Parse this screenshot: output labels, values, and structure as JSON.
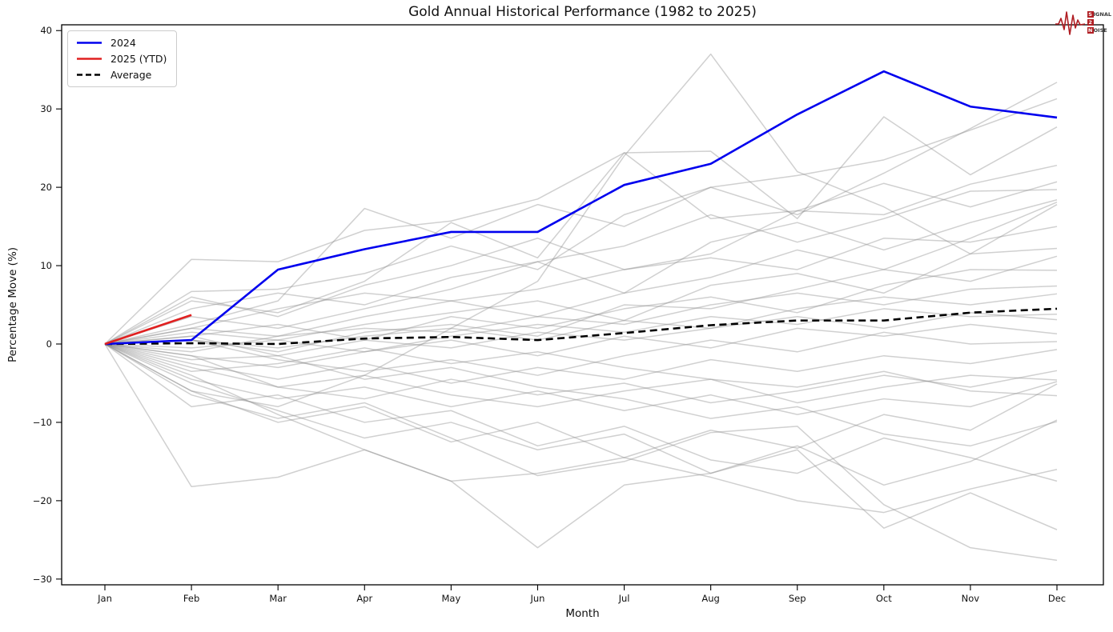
{
  "logo": {
    "rows": [
      {
        "lead": "S",
        "rest": "IGNAL"
      },
      {
        "lead": "2",
        "rest": ""
      },
      {
        "lead": "N",
        "rest": "OISE"
      }
    ]
  },
  "chart_data": {
    "type": "line",
    "title": "Gold Annual Historical Performance (1982 to 2025)",
    "xlabel": "Month",
    "ylabel": "Percentage Move (%)",
    "x_categories": [
      "Jan",
      "Feb",
      "Mar",
      "Apr",
      "May",
      "Jun",
      "Jul",
      "Aug",
      "Sep",
      "Oct",
      "Nov",
      "Dec"
    ],
    "ylim": [
      -30,
      40
    ],
    "yticks": [
      40,
      30,
      20,
      10,
      0,
      -10,
      -20,
      -30
    ],
    "grid": false,
    "legend_position": "upper-left",
    "legend": [
      {
        "label": "2024",
        "color": "#0000ee",
        "dash": false
      },
      {
        "label": "2025 (YTD)",
        "color": "#e02020",
        "dash": false
      },
      {
        "label": "Average",
        "color": "#000000",
        "dash": true
      }
    ],
    "series": [
      {
        "name": "Average",
        "color": "#000000",
        "width": 2.6,
        "dash": true,
        "values": [
          0,
          0.1,
          0,
          0.7,
          0.9,
          0.5,
          1.4,
          2.4,
          3.0,
          3.0,
          4.0,
          4.5
        ]
      },
      {
        "name": "2024",
        "color": "#0000ee",
        "width": 2.6,
        "dash": false,
        "values": [
          0,
          0.5,
          9.5,
          12.1,
          14.3,
          14.3,
          20.3,
          23.0,
          29.3,
          34.8,
          30.3,
          28.9
        ]
      },
      {
        "name": "2025 (YTD)",
        "color": "#e02020",
        "width": 2.6,
        "dash": false,
        "values": [
          0,
          3.7
        ]
      }
    ],
    "background_series": {
      "description": "Unlabeled grey lines: individual years 1982-2023 (values estimated from plot)",
      "color": "#8f8f8f",
      "opacity": 0.42,
      "width": 1.5,
      "values": [
        [
          0,
          -6,
          -8,
          -4,
          2,
          8,
          24,
          37,
          22,
          17.5,
          11.5,
          17.8
        ],
        [
          0,
          2.5,
          5.5,
          17.3,
          13.5,
          17.8,
          15,
          20,
          16.5,
          21.8,
          27.5,
          33.4
        ],
        [
          0,
          10.8,
          10.5,
          14.5,
          15.7,
          18.5,
          24.4,
          24.6,
          16,
          29,
          21.6,
          27.7
        ],
        [
          0,
          6.7,
          7,
          9,
          12.5,
          9.5,
          16.5,
          20,
          21.5,
          23.5,
          27.3,
          31.3
        ],
        [
          0,
          5.5,
          4,
          8,
          15.5,
          11,
          24.4,
          16,
          17,
          16.5,
          20.4,
          22.8
        ],
        [
          0,
          6,
          3.5,
          7.5,
          10,
          13.5,
          9.5,
          11.5,
          17,
          20.5,
          17.5,
          20.7
        ],
        [
          0,
          4.5,
          6.5,
          5,
          8.5,
          10.5,
          12.5,
          16.5,
          13,
          16,
          19.5,
          19.7
        ],
        [
          0,
          3.5,
          2,
          4.5,
          7,
          10.5,
          6.5,
          13,
          15.5,
          12,
          15.5,
          18.4
        ],
        [
          0,
          2,
          4.5,
          6.5,
          5.5,
          3.5,
          6.5,
          8.5,
          12,
          9.5,
          13.5,
          18.1
        ],
        [
          0,
          2,
          1,
          3.5,
          5.5,
          7,
          9.5,
          11,
          9.5,
          13.5,
          13,
          15
        ],
        [
          0,
          1.5,
          0.5,
          2.5,
          4,
          5.5,
          3,
          7.5,
          9,
          6.5,
          11.5,
          12.2
        ],
        [
          0,
          0.5,
          -1,
          1.5,
          2.5,
          1,
          5,
          4.5,
          7,
          9.5,
          8,
          11.2
        ],
        [
          0,
          1,
          2.5,
          0.5,
          3.5,
          2,
          4.5,
          6,
          4,
          7.5,
          9.5,
          9.4
        ],
        [
          0,
          -1,
          1,
          2,
          1.5,
          3.5,
          2.5,
          5,
          6.5,
          5,
          7,
          7.4
        ],
        [
          0,
          0.5,
          -0.5,
          1,
          2,
          0.5,
          3,
          2,
          4.5,
          6,
          5,
          6.4
        ],
        [
          0,
          -0.5,
          0.5,
          -1,
          1,
          2.5,
          1.5,
          3.5,
          2.5,
          4.5,
          3.5,
          3.8
        ],
        [
          0,
          1,
          -1.5,
          0.5,
          -0.5,
          1.5,
          0.5,
          2,
          3.5,
          2,
          4,
          3.1
        ],
        [
          0,
          -1.5,
          -3,
          -1,
          0.5,
          -1.5,
          1,
          -0.5,
          2,
          1,
          2.5,
          1.3
        ],
        [
          0,
          0.5,
          -2,
          -3.5,
          -2,
          -4,
          -1.5,
          0.5,
          -1,
          1.5,
          0,
          0.3
        ],
        [
          0,
          -2.5,
          -4.5,
          -2.5,
          -5,
          -3,
          -4.5,
          -2,
          -3.5,
          -1.5,
          -2.5,
          -0.7
        ],
        [
          0,
          -3,
          -5.5,
          -7,
          -4.5,
          -6.5,
          -5,
          -7.5,
          -6,
          -4,
          -5.5,
          -3.4
        ],
        [
          0,
          -1.5,
          -5.5,
          -4,
          -6.5,
          -8,
          -6,
          -4.5,
          -7.5,
          -5.5,
          -4,
          -4.6
        ],
        [
          0,
          -4.5,
          -7,
          -5.5,
          -8,
          -6,
          -8.5,
          -6.5,
          -9,
          -7,
          -8,
          -4.8
        ],
        [
          0,
          -3.5,
          -2.5,
          -0.5,
          -2.5,
          -1,
          -3,
          -4.5,
          -5.5,
          -3.5,
          -6,
          -6.6
        ],
        [
          0,
          -6,
          -10,
          -8,
          -12.5,
          -10,
          -14.5,
          -11,
          -13.3,
          -9,
          -11,
          -5.1
        ],
        [
          0,
          -2,
          -1.5,
          -4.5,
          -3,
          -5.5,
          -7,
          -9.5,
          -8,
          -11.5,
          -13,
          -9.9
        ],
        [
          0,
          -5,
          -8.5,
          -12,
          -10,
          -13.5,
          -11.5,
          -16.5,
          -13,
          -18,
          -15,
          -9.7
        ],
        [
          0,
          -18.2,
          -17,
          -13.5,
          -17.5,
          -16.5,
          -14.5,
          -17,
          -20,
          -21.5,
          -18.5,
          -16
        ],
        [
          0,
          -8,
          -6.5,
          -10,
          -8.5,
          -13,
          -10.5,
          -14.8,
          -16.5,
          -12,
          -14.5,
          -17.5
        ],
        [
          0,
          -4,
          -9,
          -13.5,
          -17.5,
          -26,
          -18,
          -16.5,
          -13.5,
          -23.5,
          -19,
          -23.7
        ],
        [
          0,
          -6.5,
          -9.5,
          -7.5,
          -12,
          -16.8,
          -15,
          -11.3,
          -10.5,
          -20.5,
          -26,
          -27.6
        ]
      ]
    }
  }
}
